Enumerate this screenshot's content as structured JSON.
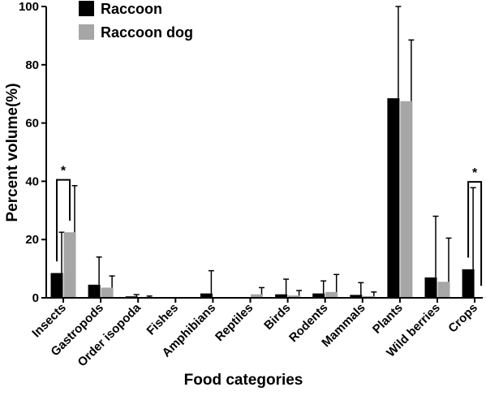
{
  "chart_data": {
    "type": "bar",
    "xlabel": "Food categories",
    "ylabel": "Percent volume(%)",
    "ylim": [
      0,
      100
    ],
    "yticks": [
      0,
      20,
      40,
      60,
      80,
      100
    ],
    "categories": [
      "Insects",
      "Gastropods",
      "Order isopoda",
      "Fishes",
      "Amphibians",
      "Reptiles",
      "Birds",
      "Rodents",
      "Mammals",
      "Plants",
      "Wild berries",
      "Crops"
    ],
    "series": [
      {
        "name": "Raccoon",
        "color": "#000000",
        "values": [
          8.5,
          4.5,
          0.5,
          0.2,
          1.5,
          0.1,
          1.2,
          1.5,
          1.0,
          68.5,
          7.0,
          9.8
        ],
        "errors": [
          14.0,
          9.5,
          0.6,
          0.0,
          7.8,
          0.0,
          5.2,
          4.3,
          4.2,
          31.5,
          21.0,
          28.0
        ]
      },
      {
        "name": "Raccoon dog",
        "color": "#a6a6a6",
        "values": [
          22.5,
          3.5,
          0.3,
          0.1,
          0.1,
          1.2,
          0.8,
          2.0,
          0.6,
          67.5,
          5.5,
          0.1
        ],
        "errors": [
          16.0,
          4.0,
          0.3,
          0.0,
          0.0,
          2.3,
          1.7,
          6.0,
          1.4,
          21.0,
          15.0,
          0.0
        ]
      }
    ],
    "significance": [
      {
        "category": "Insects",
        "label": "*"
      },
      {
        "category": "Crops",
        "label": "*"
      }
    ],
    "legend_position": "top-left"
  }
}
